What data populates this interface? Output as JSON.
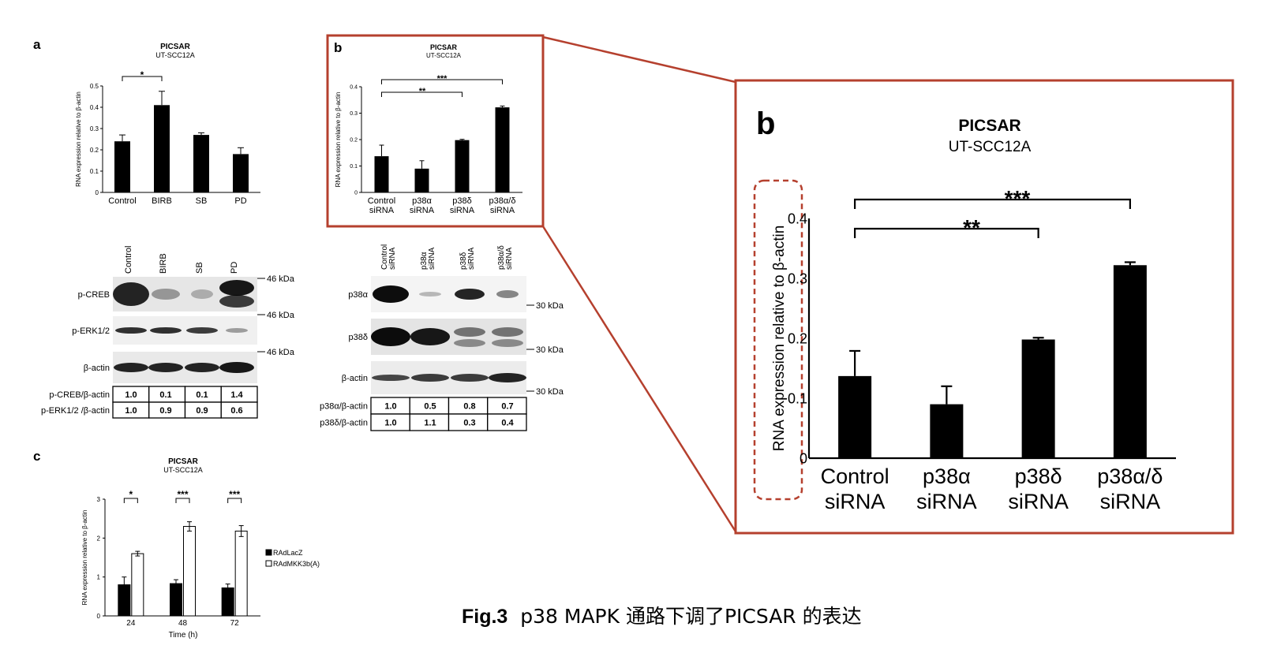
{
  "figure": {
    "caption_prefix": "Fig.3",
    "caption_text": "p38 MAPK 通路下调了PICSAR 的表达",
    "highlight_color": "#b5402e"
  },
  "panel_a": {
    "letter": "a",
    "wb_lanes": [
      "Control",
      "BIRB",
      "SB",
      "PD"
    ],
    "markers": [
      "46 kDa",
      "46 kDa",
      "46 kDa"
    ],
    "bands": [
      "p-CREB",
      "p-ERK1/2",
      "β-actin"
    ],
    "quant_rows": [
      {
        "label": "p-CREB/β-actin",
        "values": [
          "1.0",
          "0.1",
          "0.1",
          "1.4"
        ]
      },
      {
        "label": "p-ERK1/2 /β-actin",
        "values": [
          "1.0",
          "0.9",
          "0.9",
          "0.6"
        ]
      }
    ]
  },
  "panel_b": {
    "letter": "b",
    "wb_lanes": [
      "Control siRNA",
      "p38α siRNA",
      "p38δ siRNA",
      "p38α/δ siRNA"
    ],
    "markers": [
      "30 kDa",
      "30 kDa",
      "30 kDa"
    ],
    "bands": [
      "p38α",
      "p38δ",
      "β-actin"
    ],
    "quant_rows": [
      {
        "label": "p38α/β-actin",
        "values": [
          "1.0",
          "0.5",
          "0.8",
          "0.7"
        ]
      },
      {
        "label": "p38δ/β-actin",
        "values": [
          "1.0",
          "1.1",
          "0.3",
          "0.4"
        ]
      }
    ]
  },
  "panel_c": {
    "letter": "c"
  },
  "chart_data": [
    {
      "id": "a",
      "type": "bar",
      "title": "PICSAR",
      "subtitle": "UT-SCC12A",
      "ylabel": "RNA expression relative to β-actin",
      "xlabel": "",
      "categories": [
        "Control",
        "BIRB",
        "SB",
        "PD"
      ],
      "values": [
        0.24,
        0.41,
        0.27,
        0.18
      ],
      "errors": [
        0.03,
        0.065,
        0.01,
        0.03
      ],
      "ylim": [
        0,
        0.5
      ],
      "yticks": [
        "0",
        "0.1",
        "0.2",
        "0.3",
        "0.4",
        "0.5"
      ],
      "significance": [
        {
          "from": 0,
          "to": 1,
          "label": "*"
        }
      ]
    },
    {
      "id": "b",
      "type": "bar",
      "title": "PICSAR",
      "subtitle": "UT-SCC12A",
      "ylabel": "RNA expression relative to β-actin",
      "xlabel": "",
      "categories": [
        "Control siRNA",
        "p38α siRNA",
        "p38δ siRNA",
        "p38α/δ siRNA"
      ],
      "values": [
        0.137,
        0.09,
        0.198,
        0.322
      ],
      "errors": [
        0.042,
        0.03,
        0.003,
        0.005
      ],
      "ylim": [
        0,
        0.4
      ],
      "yticks": [
        "0",
        "0.1",
        "0.2",
        "0.3",
        "0.4"
      ],
      "significance": [
        {
          "from": 0,
          "to": 2,
          "label": "**"
        },
        {
          "from": 0,
          "to": 3,
          "label": "***"
        }
      ]
    },
    {
      "id": "c",
      "type": "bar",
      "title": "PICSAR",
      "subtitle": "UT-SCC12A",
      "ylabel": "RNA expression relative to β-actin",
      "xlabel": "Time (h)",
      "categories": [
        "24",
        "48",
        "72"
      ],
      "series": [
        {
          "name": "RAdLacZ",
          "values": [
            0.8,
            0.83,
            0.72
          ],
          "errors": [
            0.2,
            0.1,
            0.1
          ],
          "color": "#000000"
        },
        {
          "name": "RAdMKK3b(A)",
          "values": [
            1.6,
            2.3,
            2.18
          ],
          "errors": [
            0.06,
            0.12,
            0.14
          ],
          "color": "#ffffff"
        }
      ],
      "ylim": [
        0,
        3
      ],
      "yticks": [
        "0",
        "1",
        "2",
        "3"
      ],
      "significance": [
        {
          "group": 0,
          "label": "*"
        },
        {
          "group": 1,
          "label": "***"
        },
        {
          "group": 2,
          "label": "***"
        }
      ],
      "legend_position": "right"
    }
  ]
}
